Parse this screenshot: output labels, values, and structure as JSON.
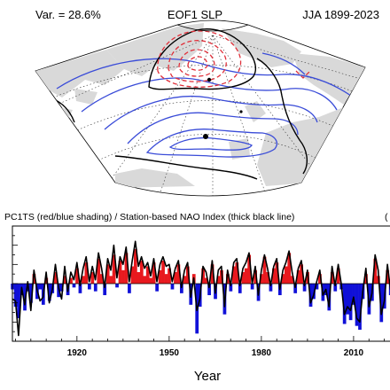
{
  "header": {
    "variance_text": "Var. = 28.6%",
    "title": "EOF1 SLP",
    "season_text": "JJA 1899-2023"
  },
  "map": {
    "projection": "polar stereographic sector",
    "land_color": "#d9d9d9",
    "positive_contour_color": "#e0303a",
    "negative_contour_color": "#3a4cd8",
    "zero_contour_color": "#000000"
  },
  "timeseries_title": "PC1TS (red/blue shading) / Station-based NAO Index (thick black line)",
  "timeseries_title_cut": "(",
  "colors": {
    "positive_fill": "#e8191e",
    "negative_fill": "#1010d8",
    "nao_line": "#000000"
  },
  "chart_data": {
    "type": "area",
    "title": "PC1TS (red/blue shading) / Station-based NAO Index (thick black line)",
    "xlabel": "Year",
    "ylabel": "",
    "xlim": [
      1899,
      2023
    ],
    "ylim": [
      -3,
      3
    ],
    "xticks": [
      1920,
      1950,
      1980,
      2010
    ],
    "series": [
      {
        "name": "PC1TS",
        "style": "bars shaded red above zero, blue below zero",
        "x": [
          1899,
          1900,
          1901,
          1902,
          1903,
          1904,
          1905,
          1906,
          1907,
          1908,
          1909,
          1910,
          1911,
          1912,
          1913,
          1914,
          1915,
          1916,
          1917,
          1918,
          1919,
          1920,
          1921,
          1922,
          1923,
          1924,
          1925,
          1926,
          1927,
          1928,
          1929,
          1930,
          1931,
          1932,
          1933,
          1934,
          1935,
          1936,
          1937,
          1938,
          1939,
          1940,
          1941,
          1942,
          1943,
          1944,
          1945,
          1946,
          1947,
          1948,
          1949,
          1950,
          1951,
          1952,
          1953,
          1954,
          1955,
          1956,
          1957,
          1958,
          1959,
          1960,
          1961,
          1962,
          1963,
          1964,
          1965,
          1966,
          1967,
          1968,
          1969,
          1970,
          1971,
          1972,
          1973,
          1974,
          1975,
          1976,
          1977,
          1978,
          1979,
          1980,
          1981,
          1982,
          1983,
          1984,
          1985,
          1986,
          1987,
          1988,
          1989,
          1990,
          1991,
          1992,
          1993,
          1994,
          1995,
          1996,
          1997,
          1998,
          1999,
          2000,
          2001,
          2002,
          2003,
          2004,
          2005,
          2006,
          2007,
          2008,
          2009,
          2010,
          2011,
          2012,
          2013,
          2014,
          2015,
          2016,
          2017,
          2018,
          2019,
          2020,
          2021,
          2022,
          2023
        ],
        "values": [
          -0.3,
          -1.2,
          -1.8,
          -0.6,
          -1.4,
          -0.4,
          -1.0,
          0.5,
          -0.8,
          -0.3,
          -1.1,
          0.3,
          -0.9,
          -0.5,
          0.6,
          -0.7,
          -0.4,
          0.4,
          -0.6,
          0.3,
          -0.2,
          0.8,
          -0.5,
          0.4,
          1.1,
          -0.3,
          0.6,
          -0.4,
          1.3,
          0.5,
          -0.6,
          1.0,
          0.4,
          1.5,
          -0.2,
          1.2,
          0.7,
          1.6,
          -0.5,
          0.9,
          1.8,
          0.6,
          1.2,
          0.4,
          0.9,
          0.3,
          1.1,
          -0.4,
          0.7,
          1.2,
          0.5,
          0.8,
          -0.3,
          0.6,
          1.0,
          -0.5,
          0.4,
          0.9,
          -1.1,
          0.5,
          -2.6,
          -1.2,
          0.8,
          0.3,
          -0.6,
          1.0,
          -0.8,
          0.4,
          0.7,
          -1.6,
          0.5,
          -0.4,
          0.9,
          1.1,
          -0.5,
          0.6,
          0.8,
          1.5,
          -0.3,
          0.7,
          -0.9,
          0.5,
          1.4,
          0.6,
          -0.4,
          0.8,
          1.1,
          -0.6,
          0.5,
          0.9,
          1.6,
          0.4,
          -0.5,
          0.7,
          1.0,
          -0.4,
          0.6,
          -1.2,
          -0.8,
          -0.3,
          0.5,
          -0.9,
          -0.6,
          -1.4,
          0.6,
          -0.4,
          0.8,
          -0.3,
          -2.1,
          -1.6,
          -1.9,
          -1.1,
          -2.2,
          -2.4,
          -0.8,
          0.5,
          -1.6,
          -0.9,
          1.3,
          0.4,
          -2.0,
          -1.3,
          0.7,
          -0.6,
          -1.0
        ]
      },
      {
        "name": "Station-based NAO Index",
        "style": "thick black line",
        "x": [
          1899,
          1900,
          1901,
          1902,
          1903,
          1904,
          1905,
          1906,
          1907,
          1908,
          1909,
          1910,
          1911,
          1912,
          1913,
          1914,
          1915,
          1916,
          1917,
          1918,
          1919,
          1920,
          1921,
          1922,
          1923,
          1924,
          1925,
          1926,
          1927,
          1928,
          1929,
          1930,
          1931,
          1932,
          1933,
          1934,
          1935,
          1936,
          1937,
          1938,
          1939,
          1940,
          1941,
          1942,
          1943,
          1944,
          1945,
          1946,
          1947,
          1948,
          1949,
          1950,
          1951,
          1952,
          1953,
          1954,
          1955,
          1956,
          1957,
          1958,
          1959,
          1960,
          1961,
          1962,
          1963,
          1964,
          1965,
          1966,
          1967,
          1968,
          1969,
          1970,
          1971,
          1972,
          1973,
          1974,
          1975,
          1976,
          1977,
          1978,
          1979,
          1980,
          1981,
          1982,
          1983,
          1984,
          1985,
          1986,
          1987,
          1988,
          1989,
          1990,
          1991,
          1992,
          1993,
          1994,
          1995,
          1996,
          1997,
          1998,
          1999,
          2000,
          2001,
          2002,
          2003,
          2004,
          2005,
          2006,
          2007,
          2008,
          2009,
          2010,
          2011,
          2012,
          2013,
          2014,
          2015,
          2016,
          2017,
          2018,
          2019,
          2020,
          2021,
          2022,
          2023
        ],
        "values": [
          -0.8,
          -0.9,
          -2.7,
          -0.2,
          -1.1,
          0.1,
          -1.4,
          0.7,
          -0.3,
          -0.9,
          -0.7,
          0.6,
          -1.0,
          -0.3,
          1.0,
          -0.2,
          -0.8,
          0.9,
          -0.4,
          0.6,
          0.2,
          1.1,
          -0.1,
          0.8,
          1.4,
          0.1,
          0.9,
          0.2,
          1.6,
          0.8,
          -0.2,
          1.3,
          0.7,
          2.0,
          0.3,
          1.4,
          1.0,
          1.9,
          0.1,
          1.2,
          2.2,
          0.9,
          1.4,
          0.8,
          1.1,
          0.4,
          1.3,
          0.1,
          1.0,
          1.4,
          0.9,
          1.0,
          0.1,
          0.8,
          1.2,
          -0.2,
          0.7,
          1.1,
          -0.7,
          0.3,
          -1.4,
          -0.8,
          0.9,
          0.6,
          -0.2,
          1.2,
          -0.5,
          0.7,
          0.9,
          -1.2,
          0.7,
          -0.1,
          1.1,
          1.3,
          -0.1,
          0.8,
          1.1,
          1.6,
          0.0,
          0.9,
          -0.6,
          0.7,
          1.5,
          0.8,
          -0.1,
          0.9,
          1.3,
          -0.3,
          0.7,
          1.1,
          1.7,
          0.6,
          -0.2,
          0.8,
          1.2,
          -0.1,
          0.7,
          -1.0,
          -0.6,
          0.1,
          0.7,
          -0.6,
          -0.3,
          -1.2,
          0.9,
          -0.1,
          1.0,
          0.0,
          -1.6,
          -1.2,
          -1.4,
          -0.7,
          -1.8,
          -2.0,
          -0.4,
          0.8,
          -1.2,
          -0.5,
          1.5,
          0.7,
          -1.6,
          -0.9,
          1.0,
          -0.3,
          -0.6
        ]
      }
    ]
  }
}
